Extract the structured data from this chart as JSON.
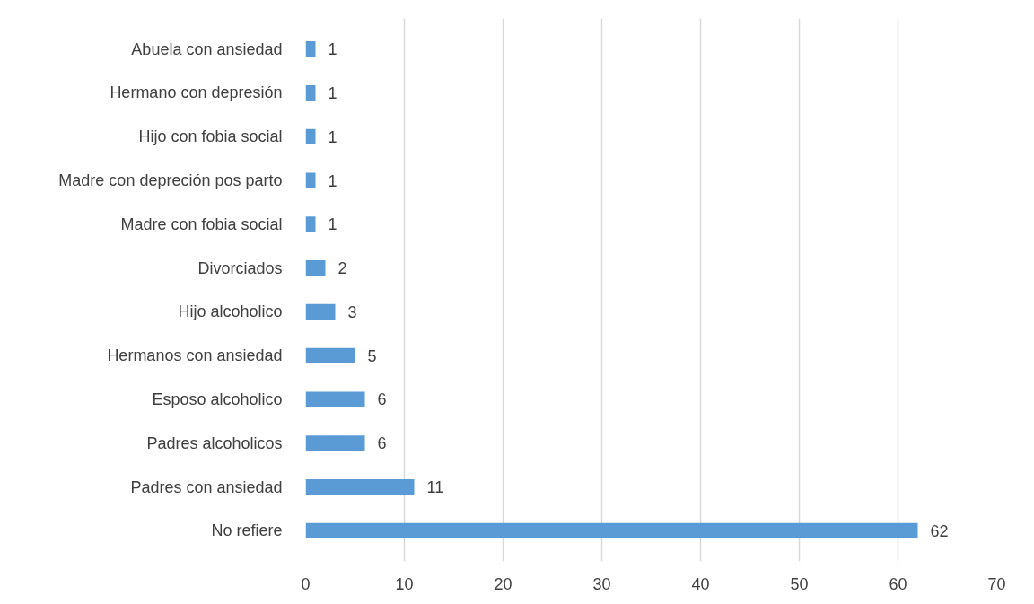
{
  "chart_data": {
    "type": "bar",
    "orientation": "horizontal",
    "categories": [
      "Abuela con ansiedad",
      "Hermano con depresión",
      "Hijo con fobia social",
      "Madre con depreción pos parto",
      "Madre con fobia social",
      "Divorciados",
      "Hijo alcoholico",
      "Hermanos con ansiedad",
      "Esposo alcoholico",
      "Padres alcoholicos",
      "Padres con ansiedad",
      "No refiere"
    ],
    "values": [
      1,
      1,
      1,
      1,
      1,
      2,
      3,
      5,
      6,
      6,
      11,
      62
    ],
    "color": "#5b9bd5",
    "xlim": [
      0,
      70
    ],
    "xticks": [
      0,
      10,
      20,
      30,
      40,
      50,
      60,
      70
    ],
    "grid": "x",
    "data_labels": true
  }
}
